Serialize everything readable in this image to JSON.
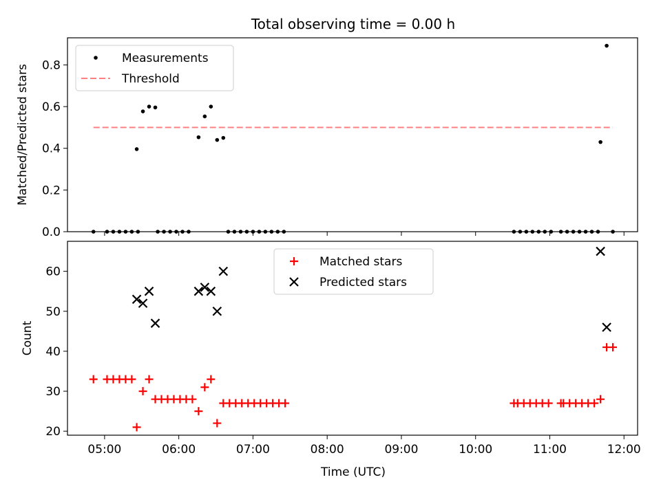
{
  "chart_data": [
    {
      "type": "scatter",
      "title": "Total observing time = 0.00 h",
      "ylabel": "Matched/Predicted stars",
      "xlabel": "",
      "xlim": [
        "04:30",
        "12:11"
      ],
      "ylim": [
        0,
        0.93
      ],
      "x_ticks": [
        "05:00",
        "06:00",
        "07:00",
        "08:00",
        "09:00",
        "10:00",
        "11:00",
        "12:00"
      ],
      "y_ticks": [
        "0.0",
        "0.2",
        "0.4",
        "0.6",
        "0.8"
      ],
      "x_tick_labels_visible": false,
      "legend": {
        "placement": "upper-left",
        "entries": [
          "Measurements",
          "Threshold"
        ]
      },
      "series": [
        {
          "name": "Measurements",
          "marker": "dot",
          "color": "#000000",
          "points": [
            [
              "04:51",
              0
            ],
            [
              "05:02",
              0
            ],
            [
              "05:07",
              0
            ],
            [
              "05:12",
              0
            ],
            [
              "05:17",
              0
            ],
            [
              "05:22",
              0
            ],
            [
              "05:27",
              0
            ],
            [
              "05:26",
              0.396
            ],
            [
              "05:31",
              0.577
            ],
            [
              "05:36",
              0.6
            ],
            [
              "05:41",
              0.596
            ],
            [
              "05:43",
              0
            ],
            [
              "05:48",
              0
            ],
            [
              "05:53",
              0
            ],
            [
              "05:58",
              0
            ],
            [
              "06:03",
              0
            ],
            [
              "06:08",
              0
            ],
            [
              "06:16",
              0.453
            ],
            [
              "06:21",
              0.553
            ],
            [
              "06:26",
              0.6
            ],
            [
              "06:31",
              0.44
            ],
            [
              "06:36",
              0.45
            ],
            [
              "06:40",
              0
            ],
            [
              "06:45",
              0
            ],
            [
              "06:50",
              0
            ],
            [
              "06:55",
              0
            ],
            [
              "07:00",
              0
            ],
            [
              "07:05",
              0
            ],
            [
              "07:10",
              0
            ],
            [
              "07:15",
              0
            ],
            [
              "07:20",
              0
            ],
            [
              "07:25",
              0
            ],
            [
              "10:31",
              0
            ],
            [
              "10:36",
              0
            ],
            [
              "10:41",
              0
            ],
            [
              "10:46",
              0
            ],
            [
              "10:51",
              0
            ],
            [
              "10:56",
              0
            ],
            [
              "11:01",
              0
            ],
            [
              "11:09",
              0
            ],
            [
              "11:14",
              0
            ],
            [
              "11:19",
              0
            ],
            [
              "11:24",
              0
            ],
            [
              "11:29",
              0
            ],
            [
              "11:34",
              0
            ],
            [
              "11:39",
              0
            ],
            [
              "11:41",
              0.43
            ],
            [
              "11:46",
              0.892
            ],
            [
              "11:51",
              0
            ]
          ]
        },
        {
          "name": "Threshold",
          "type": "line",
          "style": "dashed",
          "color": "#ff8080",
          "points": [
            [
              "04:51",
              0.5
            ],
            [
              "11:51",
              0.5
            ]
          ]
        }
      ]
    },
    {
      "type": "scatter",
      "title": "",
      "xlabel": "Time (UTC)",
      "ylabel": "Count",
      "xlim": [
        "04:30",
        "12:11"
      ],
      "ylim": [
        19,
        67.5
      ],
      "x_ticks": [
        "05:00",
        "06:00",
        "07:00",
        "08:00",
        "09:00",
        "10:00",
        "11:00",
        "12:00"
      ],
      "y_ticks": [
        "20",
        "30",
        "40",
        "50",
        "60"
      ],
      "legend": {
        "placement": "upper-center",
        "entries": [
          "Matched stars",
          "Predicted stars"
        ]
      },
      "series": [
        {
          "name": "Matched stars",
          "marker": "plus",
          "color": "#ff0000",
          "points": [
            [
              "04:51",
              33
            ],
            [
              "05:02",
              33
            ],
            [
              "05:07",
              33
            ],
            [
              "05:12",
              33
            ],
            [
              "05:17",
              33
            ],
            [
              "05:22",
              33
            ],
            [
              "05:26",
              21
            ],
            [
              "05:31",
              30
            ],
            [
              "05:36",
              33
            ],
            [
              "05:41",
              28
            ],
            [
              "05:46",
              28
            ],
            [
              "05:51",
              28
            ],
            [
              "05:56",
              28
            ],
            [
              "06:01",
              28
            ],
            [
              "06:06",
              28
            ],
            [
              "06:11",
              28
            ],
            [
              "06:16",
              25
            ],
            [
              "06:21",
              31
            ],
            [
              "06:26",
              33
            ],
            [
              "06:31",
              22
            ],
            [
              "06:36",
              27
            ],
            [
              "06:41",
              27
            ],
            [
              "06:46",
              27
            ],
            [
              "06:51",
              27
            ],
            [
              "06:56",
              27
            ],
            [
              "07:01",
              27
            ],
            [
              "07:06",
              27
            ],
            [
              "07:11",
              27
            ],
            [
              "07:16",
              27
            ],
            [
              "07:21",
              27
            ],
            [
              "07:26",
              27
            ],
            [
              "10:31",
              27
            ],
            [
              "10:34",
              27
            ],
            [
              "10:39",
              27
            ],
            [
              "10:44",
              27
            ],
            [
              "10:49",
              27
            ],
            [
              "10:54",
              27
            ],
            [
              "10:59",
              27
            ],
            [
              "11:09",
              27
            ],
            [
              "11:11",
              27
            ],
            [
              "11:16",
              27
            ],
            [
              "11:21",
              27
            ],
            [
              "11:26",
              27
            ],
            [
              "11:31",
              27
            ],
            [
              "11:36",
              27
            ],
            [
              "11:41",
              28
            ],
            [
              "11:46",
              41
            ],
            [
              "11:51",
              41
            ]
          ]
        },
        {
          "name": "Predicted stars",
          "marker": "x",
          "color": "#000000",
          "points": [
            [
              "05:26",
              53
            ],
            [
              "05:31",
              52
            ],
            [
              "05:36",
              55
            ],
            [
              "05:41",
              47
            ],
            [
              "06:16",
              55
            ],
            [
              "06:21",
              56
            ],
            [
              "06:26",
              55
            ],
            [
              "06:31",
              50
            ],
            [
              "06:36",
              60
            ],
            [
              "11:41",
              65
            ],
            [
              "11:46",
              46
            ]
          ]
        }
      ]
    }
  ]
}
